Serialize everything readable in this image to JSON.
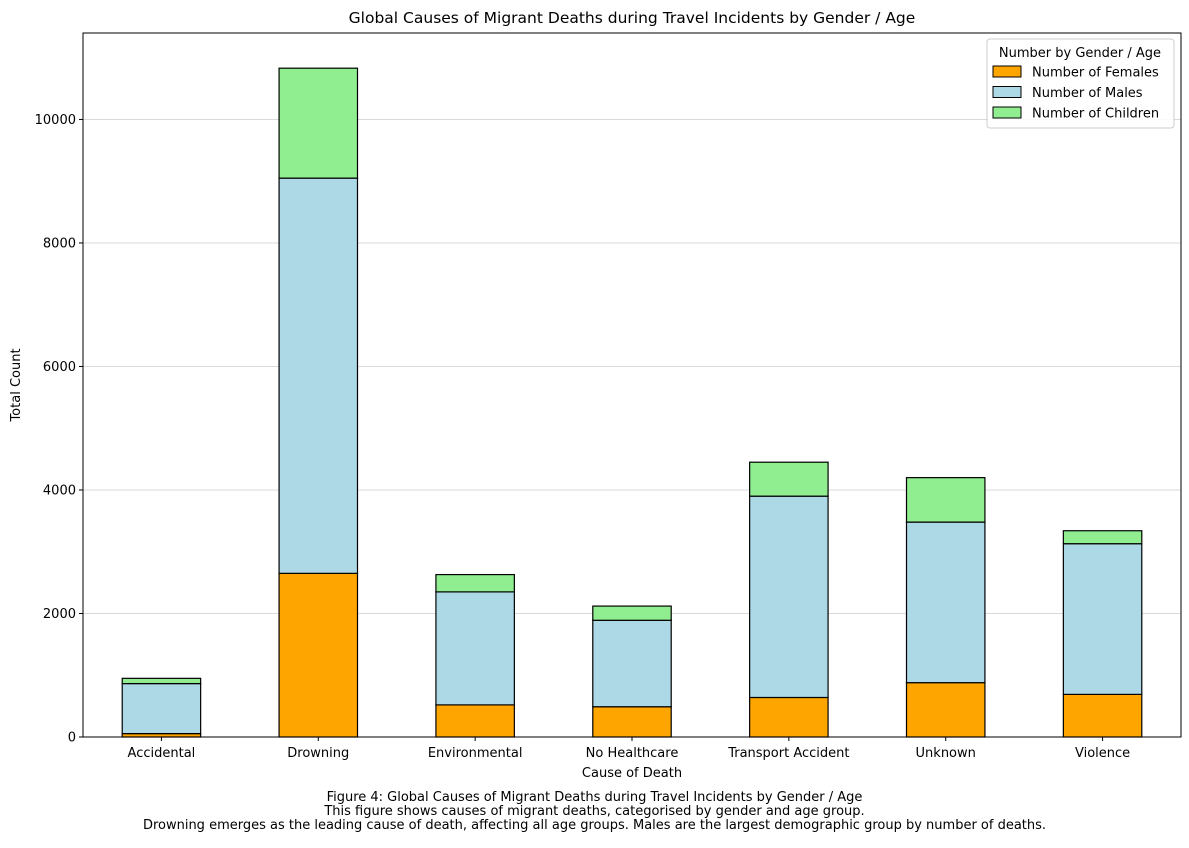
{
  "chart_data": {
    "type": "bar",
    "stacked": true,
    "title": "Global Causes of Migrant Deaths during Travel Incidents by Gender / Age",
    "xlabel": "Cause of Death",
    "ylabel": "Total Count",
    "ylim": [
      0,
      11400
    ],
    "yticks": [
      0,
      2000,
      4000,
      6000,
      8000,
      10000
    ],
    "grid": "horizontal",
    "legend_title": "Number by Gender / Age",
    "legend_position": "top-right",
    "categories": [
      "Accidental",
      "Drowning",
      "Environmental",
      "No Healthcare",
      "Transport Accident",
      "Unknown",
      "Violence"
    ],
    "series": [
      {
        "name": "Number of Females",
        "color": "#ffa500",
        "values": [
          55,
          2650,
          520,
          490,
          640,
          880,
          690
        ]
      },
      {
        "name": "Number of Males",
        "color": "#add8e6",
        "values": [
          810,
          6400,
          1830,
          1400,
          3260,
          2600,
          2440
        ]
      },
      {
        "name": "Number of Children",
        "color": "#90ee90",
        "values": [
          85,
          1780,
          280,
          230,
          550,
          720,
          210
        ]
      }
    ]
  },
  "caption": {
    "line1": "Figure 4: Global Causes of Migrant Deaths during Travel Incidents by Gender / Age",
    "line2": "This figure shows causes of migrant deaths, categorised by gender and age group.",
    "line3": "Drowning emerges as the leading cause of death, affecting all age groups. Males are the largest demographic group by number of deaths."
  }
}
